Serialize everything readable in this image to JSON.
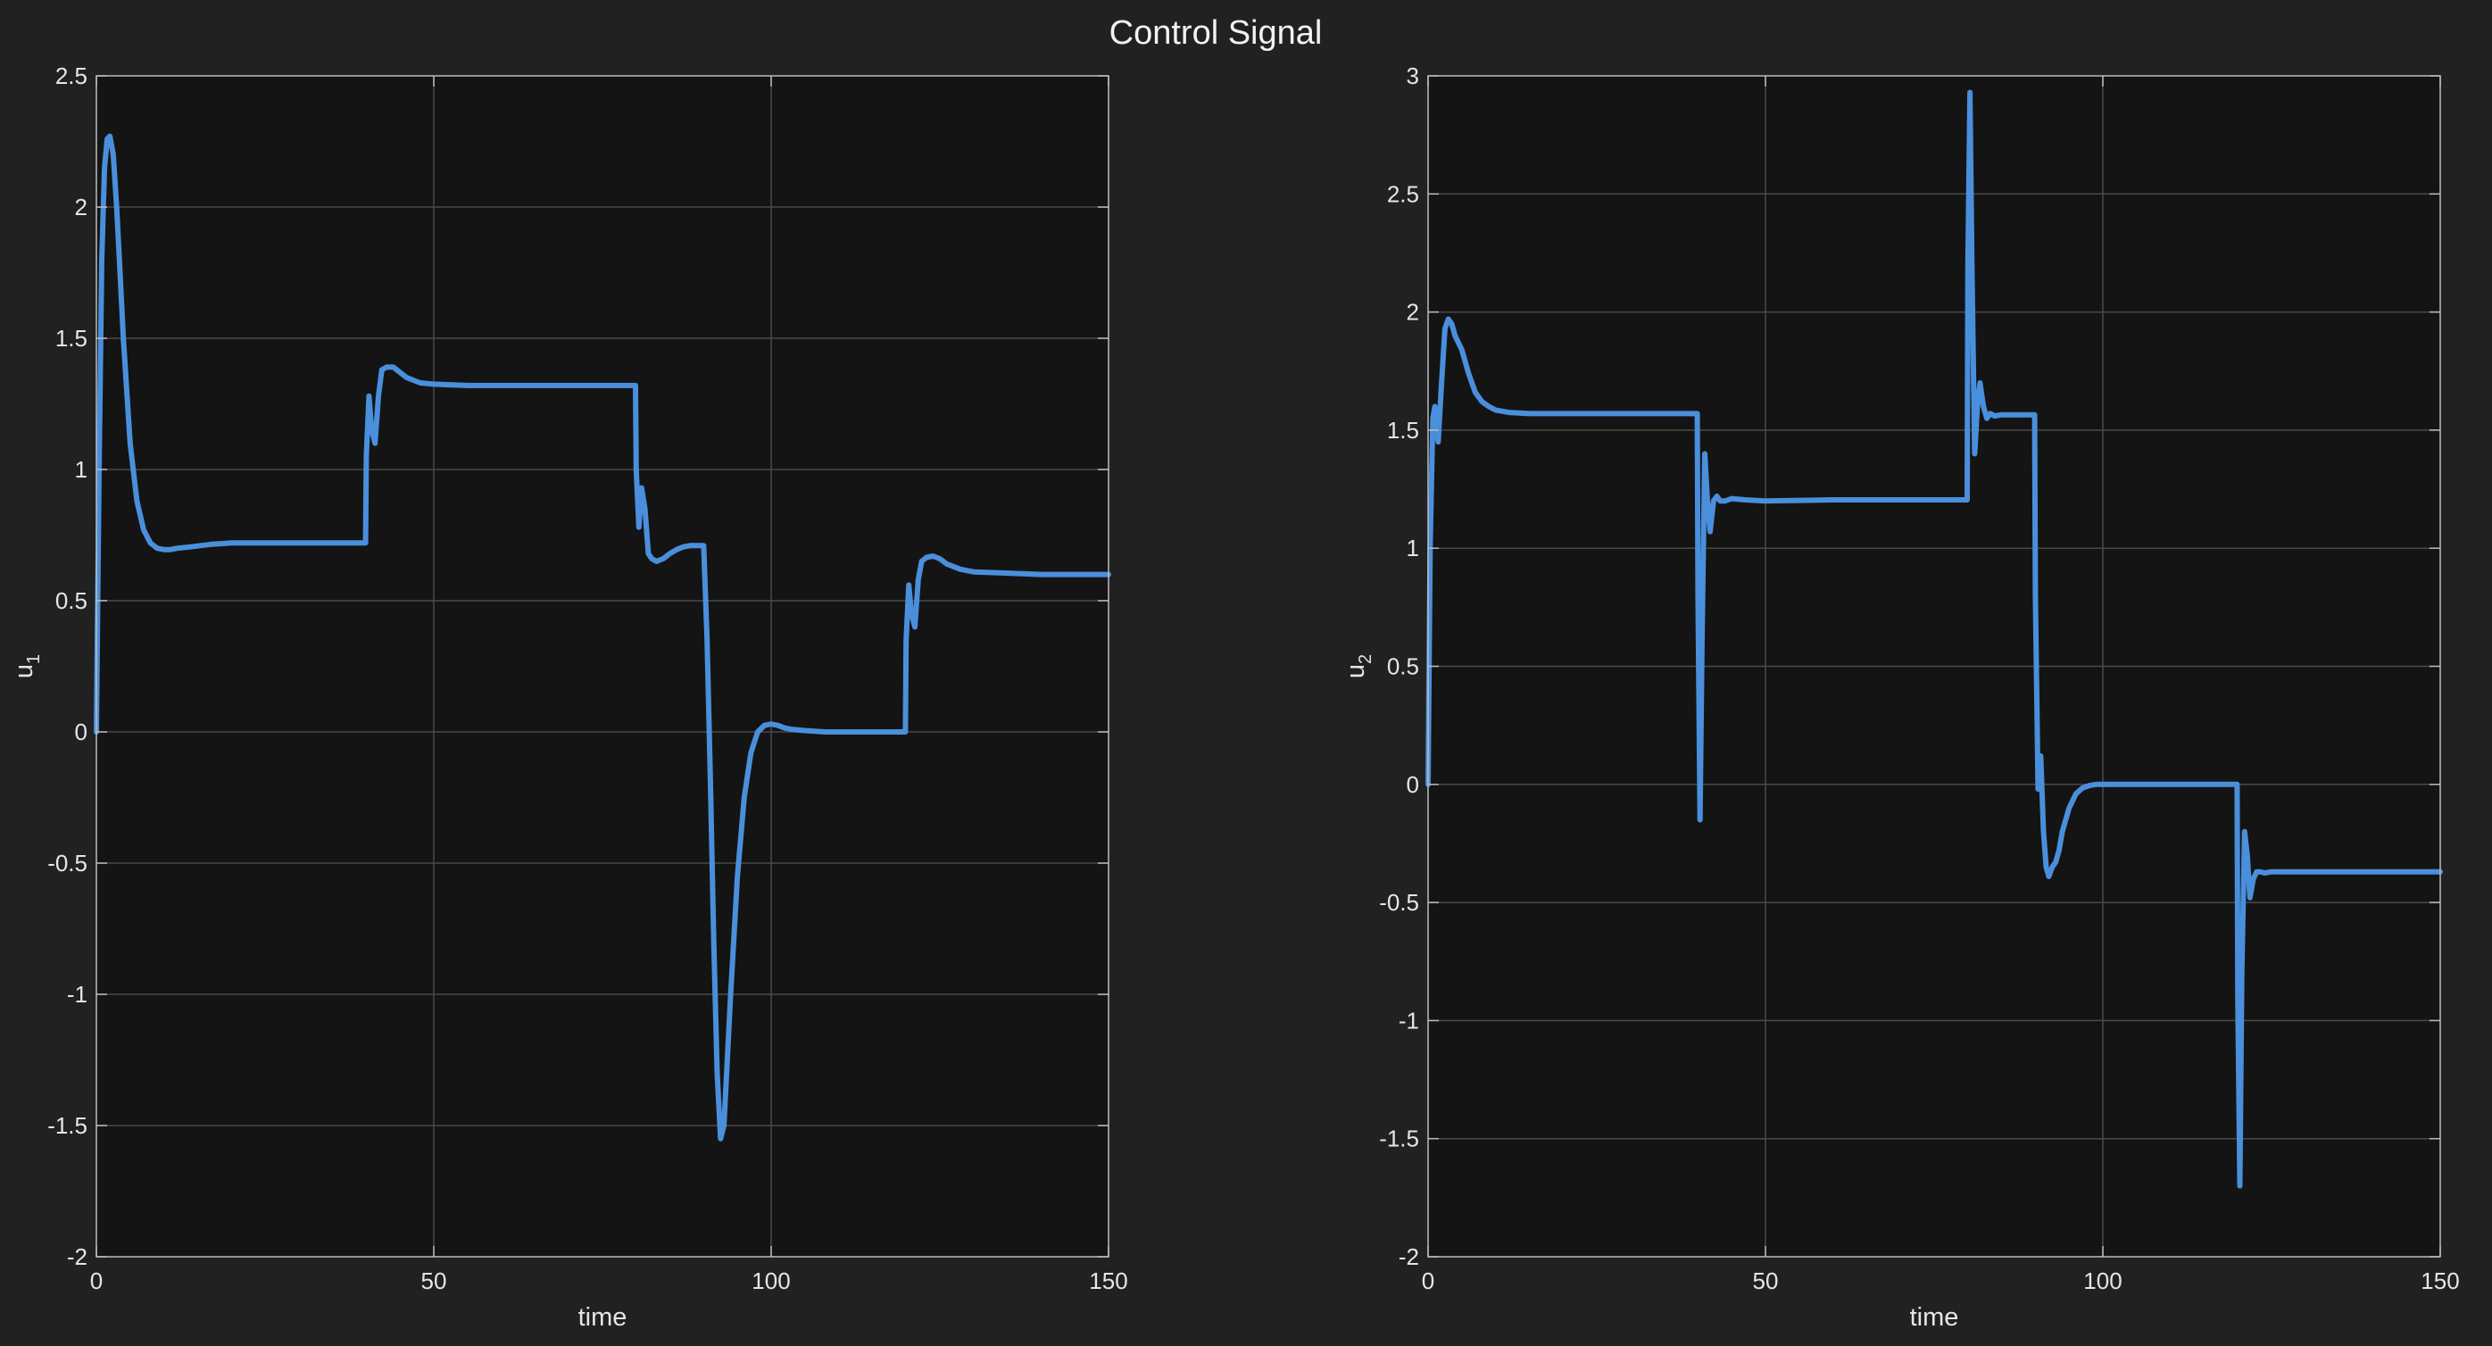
{
  "figure": {
    "title": "Control Signal",
    "background": "#212121",
    "axes_background": "#141414",
    "line_color": "#4a8fdc"
  },
  "chart_data": [
    {
      "type": "line",
      "title": "",
      "xlabel": "time",
      "ylabel_main": "u",
      "ylabel_sub": "1",
      "xlim": [
        0,
        150
      ],
      "ylim": [
        -2,
        2.5
      ],
      "xticks": [
        0,
        50,
        100,
        150
      ],
      "xtick_labels": [
        "0",
        "50",
        "100",
        "150"
      ],
      "yticks": [
        -2,
        -1.5,
        -1,
        -0.5,
        0,
        0.5,
        1,
        1.5,
        2,
        2.5
      ],
      "ytick_labels": [
        "-2",
        "-1.5",
        "-1",
        "-0.5",
        "0",
        "0.5",
        "1",
        "1.5",
        "2",
        "2.5"
      ],
      "grid": true,
      "series": [
        {
          "color": "#4a8fdc",
          "x": [
            0,
            0.4,
            0.8,
            1.2,
            1.6,
            2.0,
            2.5,
            3.0,
            3.5,
            4.0,
            5.0,
            6.0,
            7.0,
            8.0,
            9.0,
            10.0,
            11.0,
            12.0,
            14.0,
            17.0,
            20.0,
            25.0,
            30.0,
            35.0,
            39.9,
            40.0,
            40.4,
            40.8,
            41.3,
            41.8,
            42.3,
            43.0,
            44.0,
            45.0,
            46.0,
            48.0,
            50.0,
            55.0,
            60.0,
            70.0,
            79.9,
            80.0,
            80.4,
            80.8,
            81.3,
            81.8,
            82.3,
            83.0,
            84.0,
            85.0,
            86.0,
            87.0,
            88.0,
            89.9,
            90.0,
            90.5,
            91.0,
            91.5,
            92.0,
            92.5,
            93.0,
            94.0,
            95.0,
            96.0,
            97.0,
            98.0,
            99.0,
            100.0,
            101.0,
            102.0,
            103.0,
            105.0,
            108.0,
            112.0,
            116.0,
            119.9,
            120.0,
            120.4,
            120.8,
            121.3,
            121.8,
            122.3,
            123.0,
            124.0,
            125.0,
            126.0,
            128.0,
            130.0,
            135.0,
            140.0,
            150.0
          ],
          "y": [
            0,
            1.0,
            1.8,
            2.15,
            2.26,
            2.27,
            2.2,
            2.0,
            1.75,
            1.5,
            1.1,
            0.88,
            0.77,
            0.72,
            0.7,
            0.695,
            0.695,
            0.7,
            0.705,
            0.715,
            0.72,
            0.72,
            0.72,
            0.72,
            0.72,
            1.05,
            1.28,
            1.15,
            1.1,
            1.28,
            1.38,
            1.39,
            1.39,
            1.37,
            1.35,
            1.33,
            1.325,
            1.32,
            1.32,
            1.32,
            1.32,
            1.0,
            0.78,
            0.93,
            0.85,
            0.68,
            0.66,
            0.65,
            0.66,
            0.68,
            0.695,
            0.705,
            0.71,
            0.71,
            0.71,
            0.35,
            -0.2,
            -0.8,
            -1.3,
            -1.55,
            -1.5,
            -1.0,
            -0.55,
            -0.25,
            -0.08,
            0.0,
            0.025,
            0.03,
            0.025,
            0.015,
            0.01,
            0.005,
            0.0,
            0.0,
            0.0,
            0.0,
            0.35,
            0.56,
            0.45,
            0.4,
            0.58,
            0.65,
            0.665,
            0.67,
            0.66,
            0.64,
            0.62,
            0.61,
            0.605,
            0.6,
            0.6
          ]
        }
      ]
    },
    {
      "type": "line",
      "title": "",
      "xlabel": "time",
      "ylabel_main": "u",
      "ylabel_sub": "2",
      "xlim": [
        0,
        150
      ],
      "ylim": [
        -2,
        3
      ],
      "xticks": [
        0,
        50,
        100,
        150
      ],
      "xtick_labels": [
        "0",
        "50",
        "100",
        "150"
      ],
      "yticks": [
        -2,
        -1.5,
        -1,
        -0.5,
        0,
        0.5,
        1,
        1.5,
        2,
        2.5,
        3
      ],
      "ytick_labels": [
        "-2",
        "-1.5",
        "-1",
        "-0.5",
        "0",
        "0.5",
        "1",
        "1.5",
        "2",
        "2.5",
        "3"
      ],
      "grid": true,
      "series": [
        {
          "color": "#4a8fdc",
          "x": [
            0,
            0.3,
            0.7,
            1.0,
            1.5,
            2.0,
            2.5,
            3.0,
            3.5,
            4.0,
            5.0,
            6.0,
            7.0,
            8.0,
            9.0,
            10.0,
            12.0,
            15.0,
            20.0,
            30.0,
            39.9,
            40.0,
            40.3,
            40.6,
            41.0,
            41.4,
            41.8,
            42.3,
            42.8,
            43.3,
            44.0,
            45.0,
            47.0,
            50.0,
            60.0,
            70.0,
            79.9,
            80.0,
            80.3,
            80.6,
            81.0,
            81.4,
            81.8,
            82.3,
            82.8,
            83.3,
            84.0,
            85.0,
            86.0,
            87.0,
            89.9,
            90.0,
            90.4,
            90.8,
            91.2,
            91.6,
            92.0,
            92.5,
            93.0,
            93.5,
            94.0,
            95.0,
            96.0,
            97.0,
            98.0,
            99.0,
            100.0,
            102.0,
            105.0,
            110.0,
            115.0,
            119.9,
            120.0,
            120.3,
            120.6,
            121.0,
            121.4,
            121.8,
            122.3,
            122.8,
            123.3,
            124.0,
            125.0,
            127.0,
            130.0,
            140.0,
            150.0
          ],
          "y": [
            0,
            1.0,
            1.55,
            1.6,
            1.45,
            1.7,
            1.93,
            1.97,
            1.95,
            1.9,
            1.84,
            1.74,
            1.66,
            1.62,
            1.6,
            1.585,
            1.575,
            1.57,
            1.57,
            1.57,
            1.57,
            0.8,
            -0.15,
            0.6,
            1.4,
            1.2,
            1.07,
            1.2,
            1.22,
            1.2,
            1.2,
            1.21,
            1.205,
            1.2,
            1.205,
            1.205,
            1.205,
            2.2,
            2.93,
            2.2,
            1.4,
            1.6,
            1.7,
            1.6,
            1.55,
            1.57,
            1.56,
            1.565,
            1.565,
            1.565,
            1.565,
            0.8,
            -0.02,
            0.12,
            -0.2,
            -0.35,
            -0.39,
            -0.35,
            -0.33,
            -0.28,
            -0.2,
            -0.1,
            -0.04,
            -0.015,
            -0.005,
            0.0,
            0.0,
            0.0,
            0.0,
            0.0,
            0.0,
            0.0,
            -0.9,
            -1.7,
            -0.8,
            -0.2,
            -0.3,
            -0.48,
            -0.4,
            -0.37,
            -0.37,
            -0.375,
            -0.37,
            -0.37,
            -0.37,
            -0.37,
            -0.37
          ]
        }
      ]
    }
  ]
}
